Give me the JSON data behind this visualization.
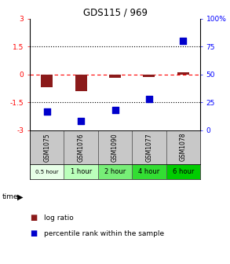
{
  "title": "GDS115 / 969",
  "categories": [
    "GSM1075",
    "GSM1076",
    "GSM1090",
    "GSM1077",
    "GSM1078"
  ],
  "time_labels": [
    "0.5 hour",
    "1 hour",
    "2 hour",
    "4 hour",
    "6 hour"
  ],
  "log_ratio": [
    -0.7,
    -0.9,
    -0.2,
    -0.15,
    0.12
  ],
  "percentile_rank_pct": [
    17,
    8,
    18,
    28,
    80
  ],
  "bar_color": "#8B1A1A",
  "dot_color": "#0000CC",
  "ylim_left": [
    -3,
    3
  ],
  "ylim_right": [
    0,
    100
  ],
  "yticks_left": [
    -3,
    -1.5,
    0,
    1.5,
    3
  ],
  "yticks_right": [
    0,
    25,
    50,
    75,
    100
  ],
  "ytick_labels_left": [
    "-3",
    "-1.5",
    "0",
    "1.5",
    "3"
  ],
  "ytick_labels_right": [
    "0",
    "25",
    "50",
    "75",
    "100%"
  ],
  "time_colors": [
    "#e8ffe8",
    "#bbffbb",
    "#77ee77",
    "#33dd33",
    "#00cc00"
  ],
  "bar_width": 0.35,
  "dot_size": 30,
  "background_color": "#ffffff"
}
